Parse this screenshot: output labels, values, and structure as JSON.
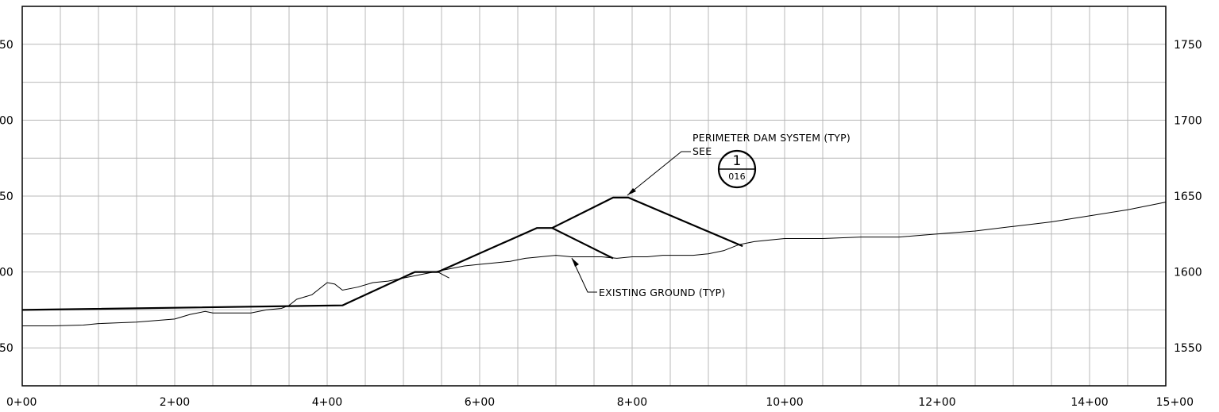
{
  "profile": {
    "x_axis": {
      "label_format": "station",
      "ticks": [
        "0+00",
        "2+00",
        "4+00",
        "6+00",
        "8+00",
        "10+00",
        "12+00",
        "14+00",
        "15+00"
      ],
      "minor_grid_interval_ft": 50,
      "range_ft": [
        0,
        1500
      ]
    },
    "y_axis_right": {
      "ticks": [
        "1550",
        "1600",
        "1650",
        "1700",
        "1750"
      ],
      "range": [
        1525,
        1775
      ],
      "minor_grid_interval": 25
    },
    "y_axis_left": {
      "ticks": [
        "50",
        "00",
        "50",
        "00",
        "50"
      ],
      "note": "clipped at left edge of screenshot"
    },
    "annotations": {
      "dam_note": "PERIMETER DAM SYSTEM (TYP)",
      "see_label": "SEE",
      "detail_number": "1",
      "sheet_number": "016",
      "ground_note": "EXISTING GROUND (TYP)"
    },
    "existing_ground": {
      "station_ft": [
        0,
        40,
        80,
        100,
        150,
        200,
        220,
        240,
        250,
        280,
        300,
        320,
        340,
        350,
        360,
        380,
        400,
        410,
        420,
        440,
        460,
        480,
        500,
        520,
        540,
        560,
        580,
        600,
        620,
        640,
        650,
        660,
        680,
        700,
        720,
        740,
        760,
        780,
        800,
        820,
        840,
        860,
        880,
        900,
        920,
        940,
        960,
        980,
        1000,
        1050,
        1100,
        1150,
        1200,
        1250,
        1300,
        1350,
        1400,
        1450,
        1500
      ],
      "elevation_ft": [
        1564.5,
        1564.5,
        1565,
        1566,
        1567,
        1569,
        1572,
        1574,
        1573,
        1573,
        1573,
        1575,
        1576,
        1578,
        1582,
        1585,
        1593,
        1592,
        1588,
        1590,
        1593,
        1594,
        1596,
        1598,
        1600,
        1602,
        1604,
        1605,
        1606,
        1607,
        1608,
        1609,
        1610,
        1611,
        1610,
        1610,
        1610,
        1609,
        1610,
        1610,
        1611,
        1611,
        1611,
        1612,
        1614,
        1618,
        1620,
        1621,
        1622,
        1622,
        1623,
        1623,
        1625,
        1627,
        1630,
        1633,
        1637,
        1641,
        1646
      ]
    },
    "dam_section": {
      "station_ft": [
        0,
        420,
        515,
        545,
        675,
        695,
        775,
        795,
        945
      ],
      "elevation_ft": [
        1575,
        1578,
        1600,
        1600,
        1629,
        1629,
        1649,
        1649,
        1617
      ]
    },
    "dam_inner_slope": {
      "station_ft": [
        695,
        775
      ],
      "elevation_ft": [
        1629,
        1609
      ]
    },
    "dam_toe_tick": {
      "station_ft": [
        545,
        560
      ],
      "elevation_ft": [
        1600,
        1596
      ]
    }
  }
}
